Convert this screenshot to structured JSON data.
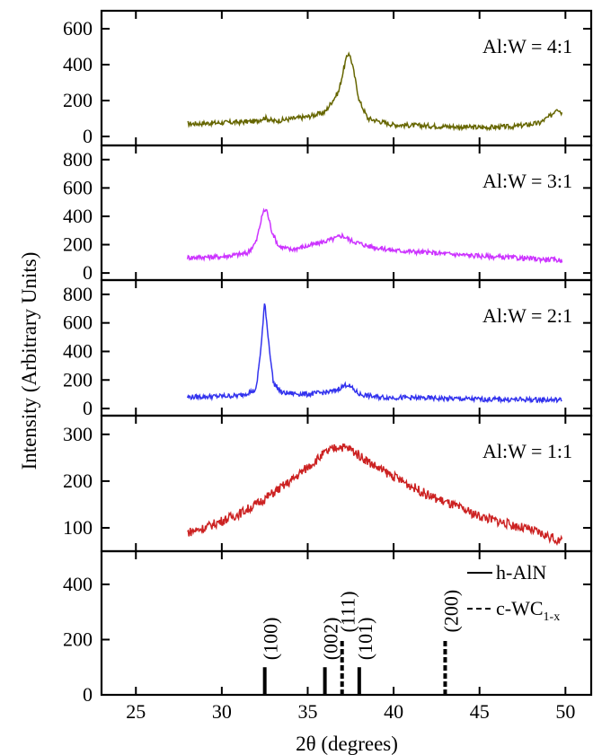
{
  "chart_data": {
    "type": "line",
    "xlabel": "2θ (degrees)",
    "ylabel": "Intensity (Arbitrary Units)",
    "xlim": [
      23,
      51.5
    ],
    "xticks": [
      25,
      30,
      35,
      40,
      45,
      50
    ],
    "grid": false,
    "panels": [
      {
        "label": "Al:W = 4:1",
        "color": "#666600",
        "ylim": [
          -50,
          700
        ],
        "yticks": [
          0,
          200,
          400,
          600
        ],
        "series": [
          {
            "x": [
              28,
              31,
              32,
              32.5,
              33,
              35,
              36,
              36.8,
              37.2,
              37.4,
              37.6,
              38,
              38.5,
              40,
              45,
              47,
              48.5,
              49.2,
              49.5,
              49.8
            ],
            "values": [
              70,
              80,
              85,
              105,
              85,
              110,
              135,
              250,
              420,
              470,
              400,
              200,
              100,
              65,
              50,
              55,
              75,
              120,
              160,
              130
            ]
          }
        ]
      },
      {
        "label": "Al:W = 3:1",
        "color": "#cc33ff",
        "ylim": [
          -50,
          900
        ],
        "yticks": [
          0,
          200,
          400,
          600,
          800
        ],
        "series": [
          {
            "x": [
              28,
              30,
              31.5,
              32,
              32.4,
              32.6,
              32.9,
              33.3,
              34,
              35,
              36.5,
              37,
              37.5,
              38.5,
              40,
              45,
              49.8
            ],
            "values": [
              110,
              115,
              140,
              220,
              430,
              450,
              300,
              190,
              165,
              190,
              240,
              265,
              230,
              190,
              160,
              120,
              90
            ]
          }
        ]
      },
      {
        "label": "Al:W = 2:1",
        "color": "#3333ee",
        "ylim": [
          -50,
          900
        ],
        "yticks": [
          0,
          200,
          400,
          600,
          800
        ],
        "series": [
          {
            "x": [
              28,
              31,
              32,
              32.3,
              32.5,
              32.7,
              33,
              33.5,
              35,
              36.5,
              37.3,
              38,
              39,
              45,
              49.8
            ],
            "values": [
              80,
              90,
              130,
              450,
              750,
              500,
              180,
              110,
              100,
              120,
              170,
              100,
              80,
              65,
              60
            ]
          }
        ]
      },
      {
        "label": "Al:W = 1:1",
        "color": "#cc2222",
        "ylim": [
          50,
          340
        ],
        "yticks": [
          100,
          200,
          300
        ],
        "series": [
          {
            "x": [
              28,
              29,
              30,
              31,
              32,
              33,
              34,
              35,
              36,
              36.8,
              37.5,
              38,
              39,
              40,
              41,
              42,
              43,
              44,
              45,
              46,
              47,
              48,
              49,
              49.8
            ],
            "values": [
              90,
              100,
              115,
              130,
              150,
              175,
              200,
              230,
              260,
              275,
              268,
              255,
              230,
              210,
              190,
              170,
              155,
              140,
              125,
              115,
              105,
              95,
              82,
              70
            ]
          }
        ]
      },
      {
        "label": "",
        "type": "reference",
        "ylim": [
          0,
          520
        ],
        "yticks": [
          0,
          200,
          400
        ],
        "legend": [
          {
            "name": "h-AlN",
            "style": "solid"
          },
          {
            "name": "c-WC1-x",
            "base": "c-WC",
            "sub": "1-x",
            "style": "dashed"
          }
        ],
        "legend_position": "top-right",
        "lines": [
          {
            "x": 32.5,
            "value": 100,
            "label": "(100)",
            "series": "h-AlN"
          },
          {
            "x": 36.0,
            "value": 100,
            "label": "(002)",
            "series": "h-AlN"
          },
          {
            "x": 37.0,
            "value": 200,
            "label": "(111)",
            "series": "c-WC1-x"
          },
          {
            "x": 38.0,
            "value": 100,
            "label": "(101)",
            "series": "h-AlN"
          },
          {
            "x": 43.0,
            "value": 200,
            "label": "(200)",
            "series": "c-WC1-x"
          }
        ]
      }
    ]
  }
}
